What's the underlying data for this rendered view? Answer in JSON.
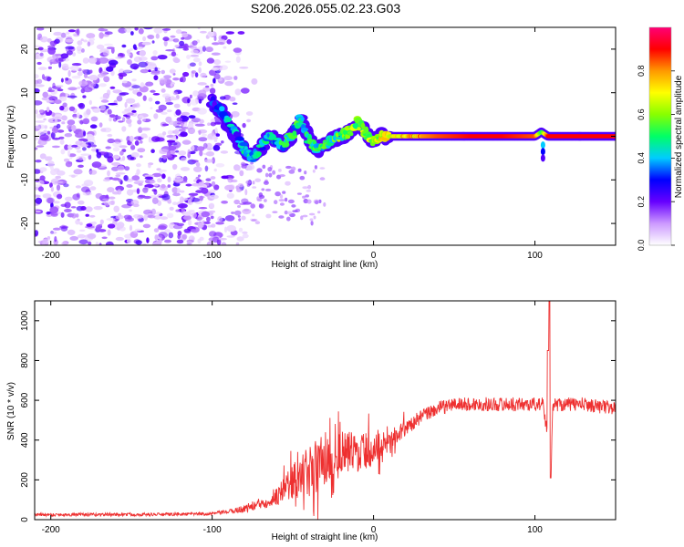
{
  "title": "S206.2026.055.02.23.G03",
  "chart_data": [
    {
      "type": "heatmap",
      "title": "S206.2026.055.02.23.G03",
      "xlabel": "Height of straight line (km)",
      "ylabel": "Frequency (Hz)",
      "xlim": [
        -210,
        150
      ],
      "ylim": [
        -25,
        25
      ],
      "xticks": [
        -200,
        -100,
        0,
        100
      ],
      "xtick_labels": [
        "-200",
        "-100",
        "0",
        "100"
      ],
      "yticks": [
        -20,
        -10,
        0,
        10,
        20
      ],
      "ytick_labels": [
        "-20",
        "-10",
        "0",
        "10",
        "20"
      ],
      "colorbar": {
        "label": "Normalized spectral amplitude",
        "range": [
          0,
          1
        ],
        "ticks": [
          0.0,
          0.2,
          0.4,
          0.6,
          0.8
        ],
        "tick_labels": [
          "0.0",
          "0.2",
          "0.4",
          "0.6",
          "0.8"
        ],
        "colormap": [
          "#ffffff",
          "#cc99ff",
          "#6600ff",
          "#0000ff",
          "#00ccff",
          "#00ff66",
          "#88ff00",
          "#ffff00",
          "#ff9900",
          "#ff0000",
          "#ff0077"
        ]
      },
      "frequency_track": {
        "height_km": [
          -100,
          -95,
          -90,
          -85,
          -80,
          -75,
          -70,
          -65,
          -60,
          -55,
          -50,
          -45,
          -40,
          -35,
          -30,
          -25,
          -20,
          -15,
          -10,
          -5,
          0,
          5,
          10,
          20,
          30,
          40,
          60,
          80,
          100,
          104,
          108,
          150
        ],
        "frequency_hz": [
          8,
          6,
          3,
          0,
          -3,
          -5,
          -3,
          0,
          -1,
          -2,
          1,
          4,
          -1,
          -3,
          -2,
          -1,
          0,
          1,
          3,
          1,
          -1,
          0,
          0,
          0,
          0,
          0,
          0,
          0,
          0,
          1,
          0,
          0
        ],
        "amplitude": [
          0.25,
          0.3,
          0.35,
          0.35,
          0.4,
          0.4,
          0.4,
          0.4,
          0.4,
          0.45,
          0.45,
          0.45,
          0.45,
          0.45,
          0.5,
          0.5,
          0.55,
          0.6,
          0.6,
          0.6,
          0.65,
          0.65,
          0.7,
          0.75,
          0.8,
          0.85,
          0.9,
          0.9,
          0.85,
          0.5,
          0.9,
          0.9
        ]
      },
      "noise_region_km": [
        -210,
        -85
      ]
    },
    {
      "type": "line",
      "xlabel": "Height of straight line (km)",
      "ylabel": "SNR (10 * v/v)",
      "xlim": [
        -210,
        150
      ],
      "ylim": [
        0,
        1100
      ],
      "xticks": [
        -200,
        -100,
        0,
        100
      ],
      "xtick_labels": [
        "-200",
        "-100",
        "0",
        "100"
      ],
      "yticks": [
        0,
        200,
        400,
        600,
        800,
        1000
      ],
      "ytick_labels": [
        "0",
        "200",
        "400",
        "600",
        "800",
        "1000"
      ],
      "series": [
        {
          "name": "SNR",
          "color": "#ee3030",
          "x": [
            -210,
            -200,
            -180,
            -160,
            -140,
            -120,
            -100,
            -90,
            -80,
            -70,
            -60,
            -50,
            -40,
            -30,
            -20,
            -10,
            0,
            10,
            20,
            30,
            40,
            50,
            60,
            80,
            100,
            105,
            108,
            109,
            110,
            111,
            115,
            120,
            130,
            150
          ],
          "y": [
            25,
            25,
            25,
            26,
            26,
            27,
            30,
            40,
            55,
            80,
            120,
            190,
            240,
            300,
            330,
            340,
            350,
            400,
            460,
            520,
            560,
            580,
            580,
            580,
            580,
            580,
            420,
            1100,
            210,
            580,
            580,
            580,
            580,
            560
          ],
          "noise": [
            8,
            8,
            8,
            8,
            8,
            8,
            8,
            10,
            20,
            30,
            50,
            90,
            130,
            150,
            120,
            100,
            80,
            50,
            40,
            35,
            35,
            35,
            35,
            35,
            35,
            35,
            35,
            0,
            0,
            35,
            35,
            35,
            35,
            35
          ]
        }
      ]
    }
  ]
}
